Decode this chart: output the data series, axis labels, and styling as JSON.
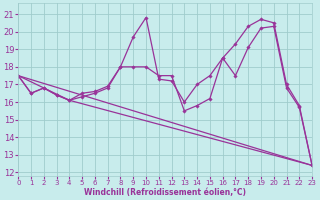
{
  "background_color": "#c8ecec",
  "grid_color": "#a0cccc",
  "line_color": "#993399",
  "xlabel": "Windchill (Refroidissement éolien,°C)",
  "ylim": [
    11.8,
    21.6
  ],
  "xlim": [
    0,
    23
  ],
  "yticks": [
    12,
    13,
    14,
    15,
    16,
    17,
    18,
    19,
    20,
    21
  ],
  "xticks": [
    0,
    1,
    2,
    3,
    4,
    5,
    6,
    7,
    8,
    9,
    10,
    11,
    12,
    13,
    14,
    15,
    16,
    17,
    18,
    19,
    20,
    21,
    22,
    23
  ],
  "series": [
    {
      "x": [
        0,
        1,
        2,
        3,
        4,
        5,
        6,
        7,
        8,
        9,
        10,
        11,
        12,
        13,
        14,
        15,
        16,
        17,
        18,
        19,
        20,
        21,
        22,
        23
      ],
      "y": [
        17.5,
        16.5,
        16.8,
        16.4,
        16.1,
        16.5,
        16.6,
        16.9,
        18.0,
        18.0,
        18.0,
        17.5,
        17.5,
        15.5,
        15.8,
        16.2,
        18.5,
        19.3,
        20.3,
        20.7,
        20.5,
        17.0,
        15.8,
        12.4
      ],
      "marker": true,
      "linestyle": "-"
    },
    {
      "x": [
        0,
        1,
        2,
        3,
        4,
        5,
        6,
        7,
        8,
        9,
        10,
        11,
        12,
        13,
        14,
        15,
        16,
        17,
        18,
        19,
        20,
        21,
        22,
        23
      ],
      "y": [
        17.5,
        16.5,
        16.8,
        16.4,
        16.1,
        16.3,
        16.5,
        16.8,
        18.0,
        19.7,
        20.8,
        17.3,
        17.2,
        16.0,
        17.0,
        17.5,
        18.5,
        17.5,
        19.1,
        20.2,
        20.3,
        16.8,
        15.7,
        12.4
      ],
      "marker": true,
      "linestyle": "-"
    },
    {
      "x": [
        0,
        23
      ],
      "y": [
        17.5,
        12.4
      ],
      "marker": false,
      "linestyle": "-"
    },
    {
      "x": [
        0,
        4,
        23
      ],
      "y": [
        17.5,
        16.1,
        12.4
      ],
      "marker": false,
      "linestyle": "-"
    }
  ]
}
